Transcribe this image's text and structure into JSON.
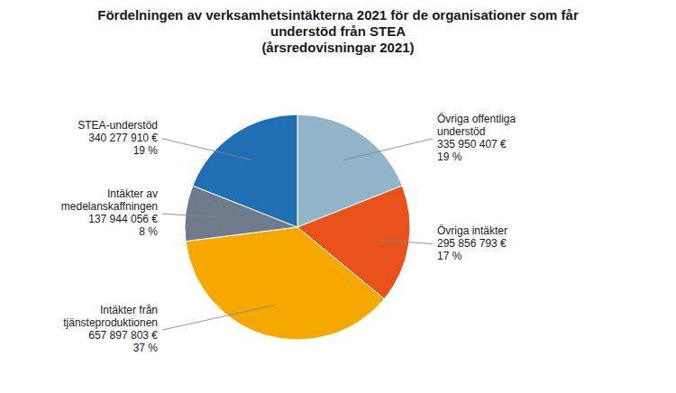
{
  "chart_data": {
    "type": "pie",
    "title": "Fördelningen av verksamhetsintäkterna 2021 för de organisationer som får\nunderstöd från STEA\n(årsredovisningar 2021)",
    "categories": [
      "Övriga offentliga\nunderstöd\n335 950 407 €\n19 %",
      "Övriga intäkter\n295 856 793 €\n17 %",
      "Intäkter från\ntjänsteproduktionen\n657 897 803 €\n37 %",
      "Intäkter av\nmedelanskaffningen\n137 944 056 €\n8 %",
      "STEA-understöd\n340 277 910 €\n19 %"
    ],
    "values": [
      19,
      17,
      37,
      8,
      19
    ],
    "colors": [
      "#92b4c8",
      "#e8521a",
      "#f5a800",
      "#6d7b8a",
      "#1f6fb2"
    ]
  }
}
